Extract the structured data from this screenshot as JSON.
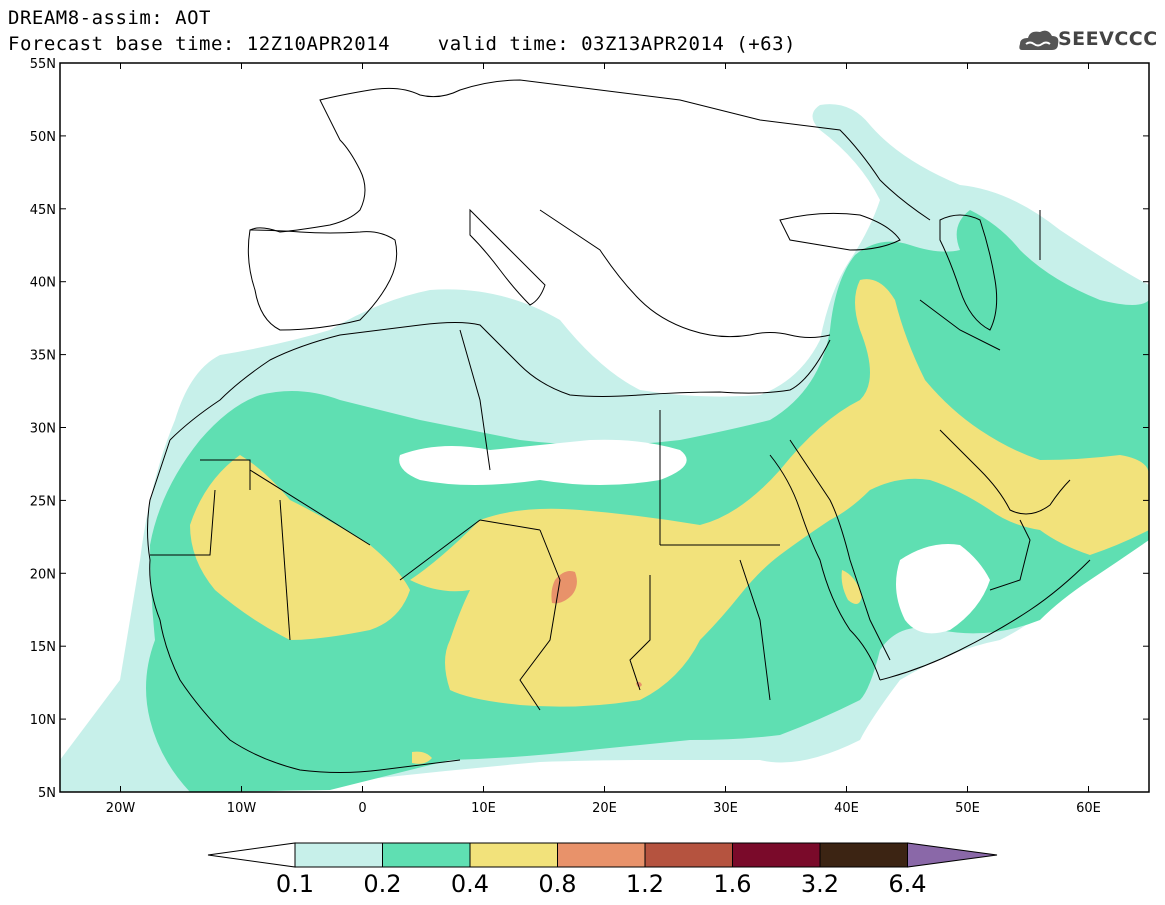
{
  "title": {
    "line1": "DREAM8-assim: AOT",
    "line2": "Forecast base time: 12Z10APR2014    valid time: 03Z13APR2014 (+63)"
  },
  "logo": {
    "text": "SEEVCCC",
    "icon": "cloud-logo-icon"
  },
  "map": {
    "lon_range": [
      -25,
      65
    ],
    "lat_range": [
      5,
      55
    ],
    "lat_labels": [
      "55N",
      "50N",
      "45N",
      "40N",
      "35N",
      "30N",
      "25N",
      "20N",
      "15N",
      "10N",
      "5N"
    ],
    "lat_values": [
      55,
      50,
      45,
      40,
      35,
      30,
      25,
      20,
      15,
      10,
      5
    ],
    "lon_labels": [
      "20W",
      "10W",
      "0",
      "10E",
      "20E",
      "30E",
      "40E",
      "50E",
      "60E"
    ],
    "lon_values": [
      -20,
      -10,
      0,
      10,
      20,
      30,
      40,
      50,
      60
    ]
  },
  "colorbar": {
    "labels": [
      "0.1",
      "0.2",
      "0.4",
      "0.8",
      "1.2",
      "1.6",
      "3.2",
      "6.4"
    ],
    "colors": [
      "#c7f0ea",
      "#5fdfb2",
      "#f2e27b",
      "#e8926a",
      "#b5533f",
      "#7a0a2a",
      "#3c2413",
      "#8a68a8"
    ],
    "under_color": "#ffffff"
  },
  "fill_colors": {
    "level_0_1": "#c7f0ea",
    "level_0_2": "#5fdfb2",
    "level_0_4": "#f2e27b",
    "level_0_8": "#e8926a"
  }
}
